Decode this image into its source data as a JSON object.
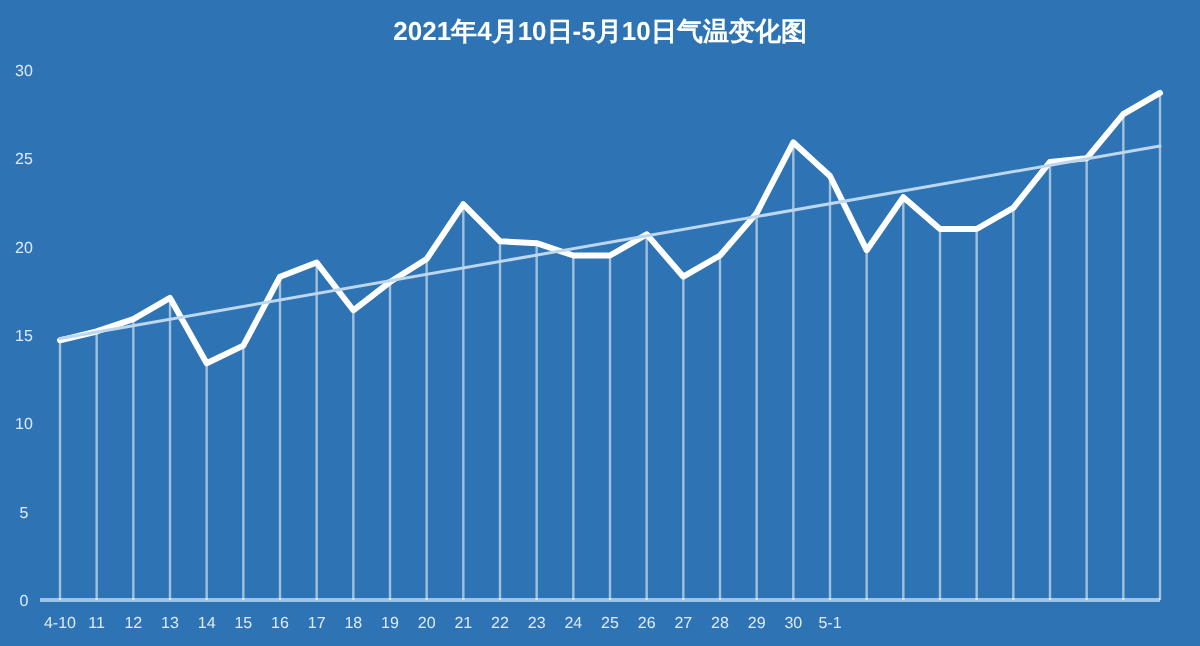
{
  "chart_data": {
    "type": "line",
    "title": "2021年4月10日-5月10日气温变化图",
    "categories": [
      "4-10",
      "11",
      "12",
      "13",
      "14",
      "15",
      "16",
      "17",
      "18",
      "19",
      "20",
      "21",
      "22",
      "23",
      "24",
      "25",
      "26",
      "27",
      "28",
      "29",
      "30",
      "5-1",
      null,
      null,
      null,
      null,
      null,
      null,
      null,
      null,
      null
    ],
    "series": [
      {
        "type": "bar",
        "color": "#ffffff",
        "values": [
          14.7,
          15.2,
          15.9,
          17.1,
          13.4,
          14.4,
          18.3,
          19.1,
          16.4,
          18.0,
          19.3,
          22.4,
          20.3,
          20.2,
          19.5,
          19.5,
          20.7,
          18.3,
          19.5,
          21.9,
          25.9,
          24.0,
          19.8,
          22.8,
          21.0,
          21.0,
          22.2,
          24.8,
          25.0,
          27.5,
          28.7
        ]
      },
      {
        "color": "#ffffff",
        "values": [
          14.7,
          15.2,
          15.9,
          17.1,
          13.4,
          14.4,
          18.3,
          19.1,
          16.4,
          18.0,
          19.3,
          22.4,
          20.3,
          20.2,
          19.5,
          19.5,
          20.7,
          18.3,
          19.5,
          21.9,
          25.9,
          24.0,
          19.8,
          22.8,
          21.0,
          21.0,
          22.2,
          24.8,
          25.0,
          27.5,
          28.7
        ]
      },
      {
        "color": "#bdd7ee",
        "values": [
          14.8,
          null,
          null,
          null,
          null,
          null,
          null,
          null,
          null,
          null,
          null,
          null,
          null,
          null,
          null,
          null,
          null,
          null,
          null,
          null,
          null,
          null,
          null,
          null,
          null,
          null,
          null,
          null,
          null,
          null,
          25.7
        ]
      }
    ],
    "ylim": [
      0,
      30
    ],
    "yticks": [
      0,
      5,
      10,
      15,
      20,
      25,
      30
    ],
    "grid": false
  }
}
